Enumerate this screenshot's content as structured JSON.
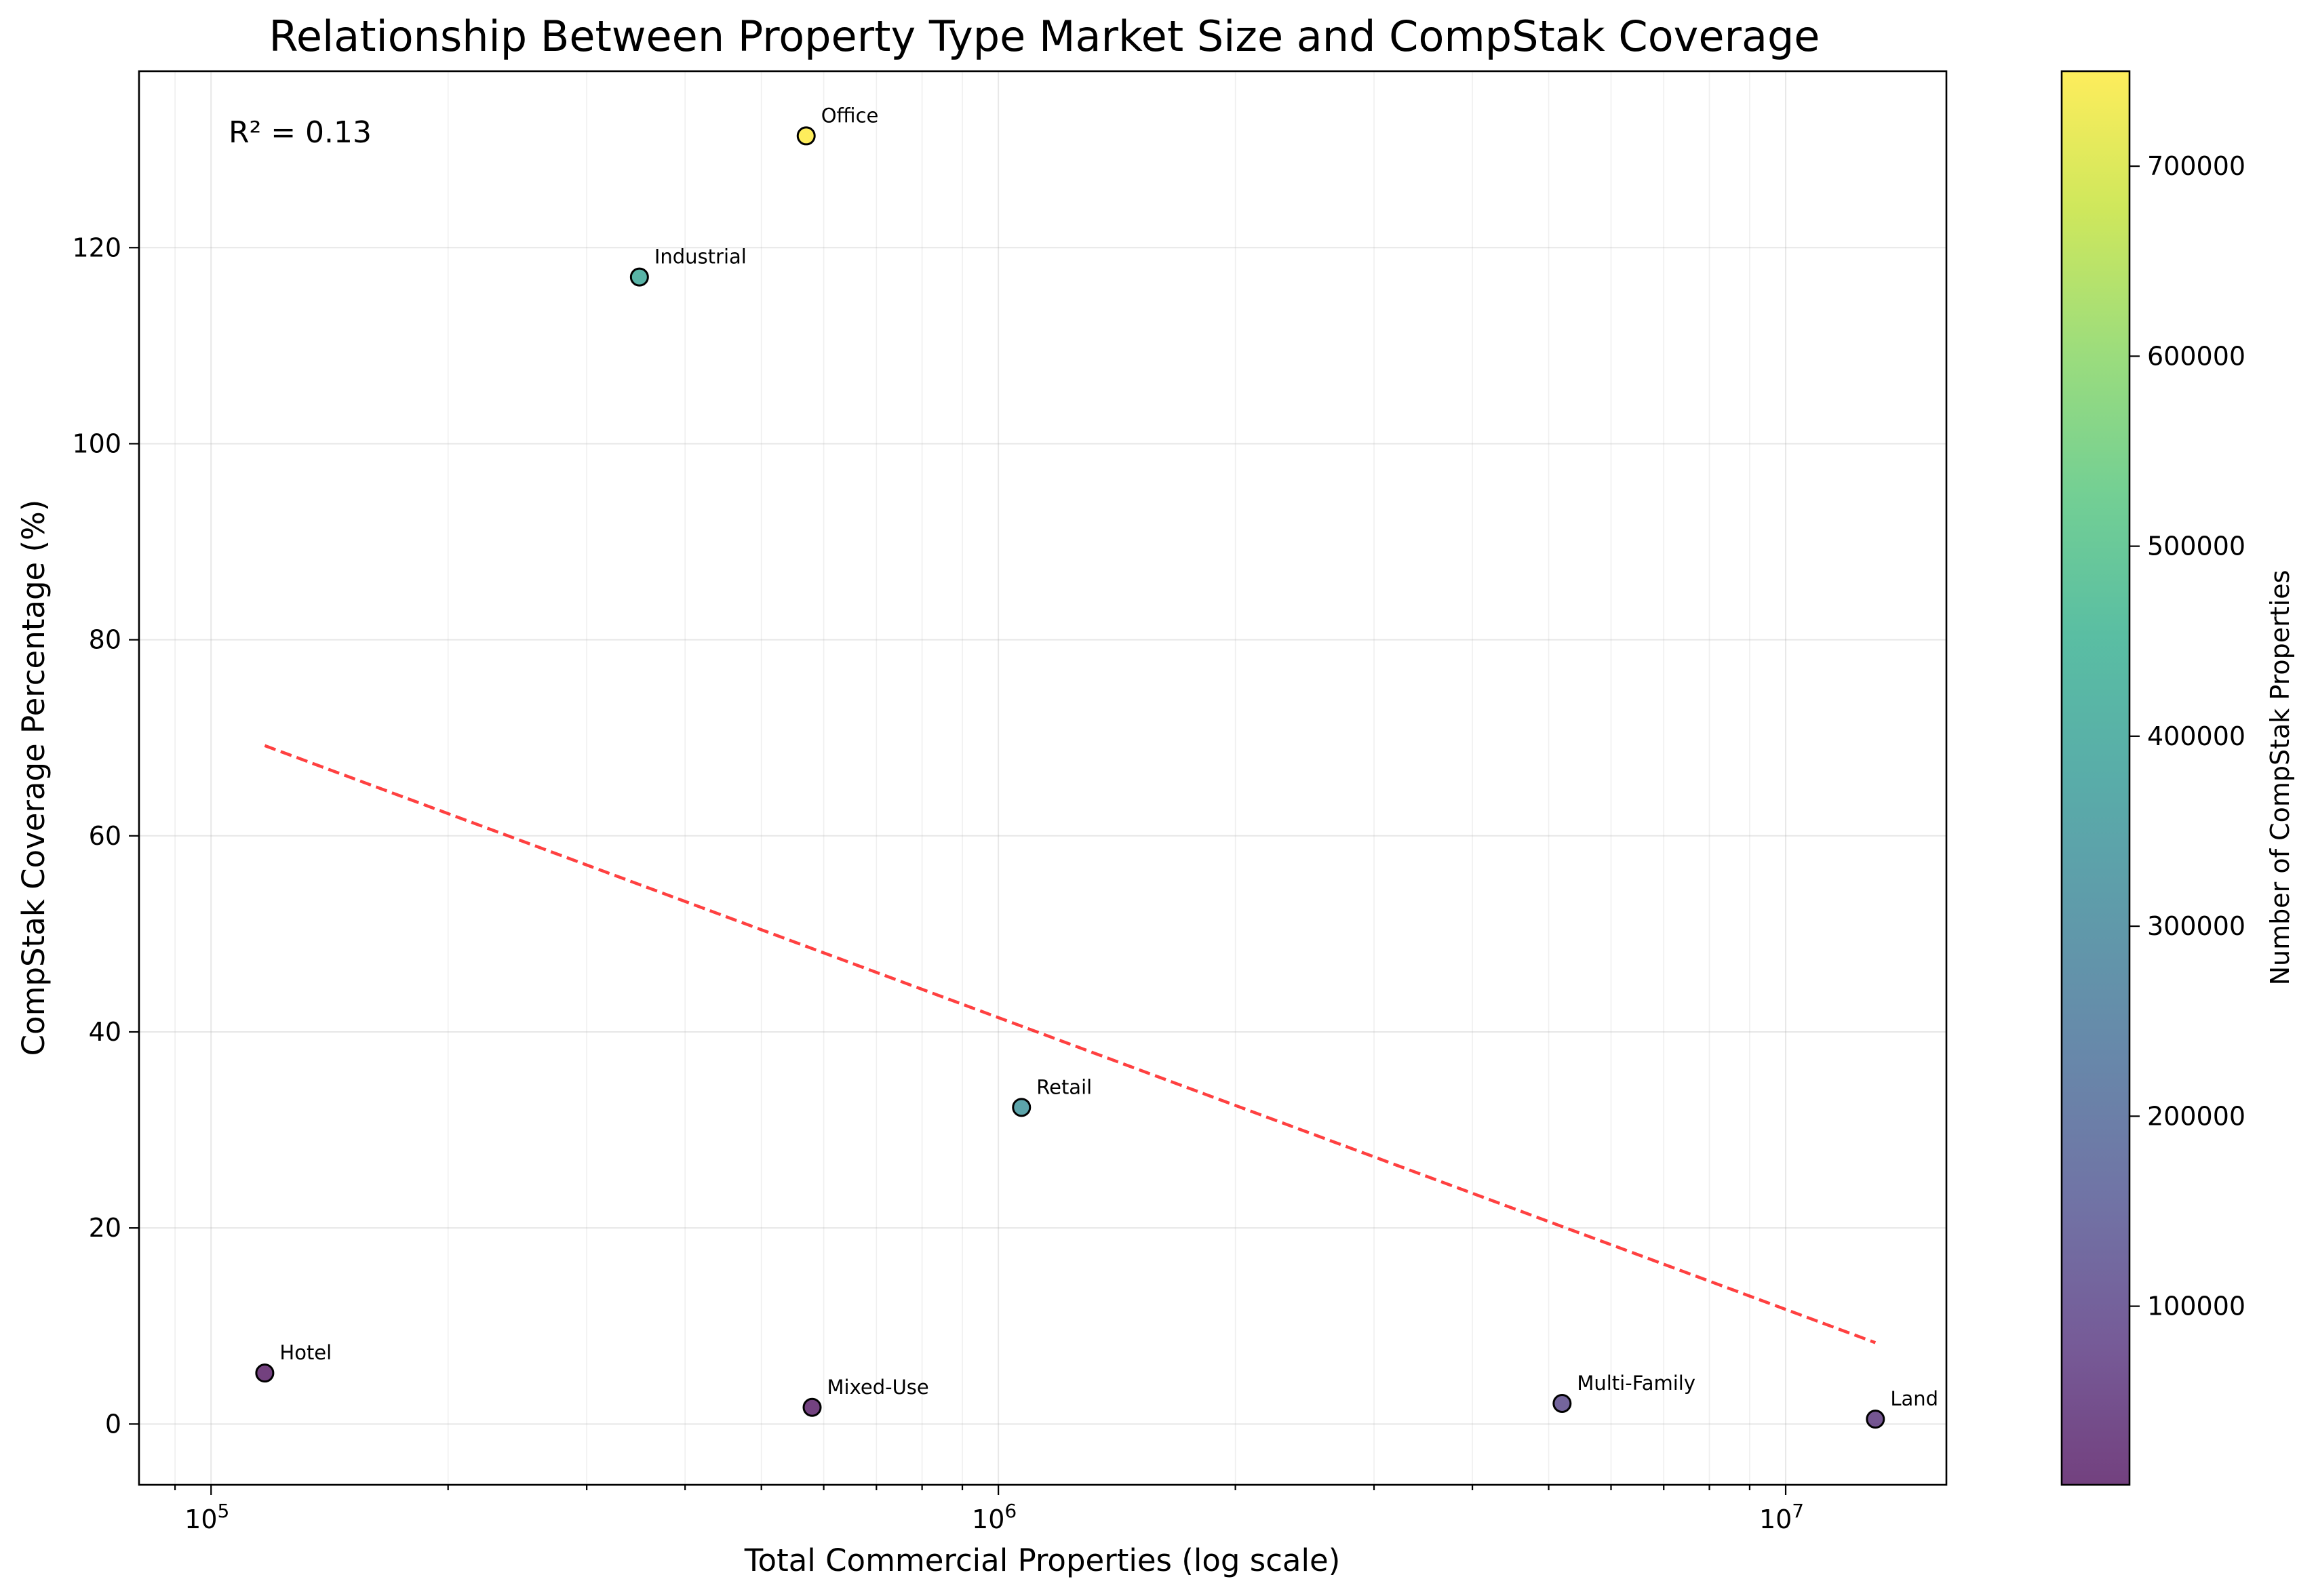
{
  "chart_data": {
    "type": "scatter",
    "title": "Relationship Between Property Type Market Size and CompStak Coverage",
    "xlabel": "Total Commercial Properties (log scale)",
    "ylabel": "CompStak Coverage Percentage (%)",
    "xscale": "log",
    "xlim": [
      81000,
      16000000
    ],
    "ylim": [
      -6.2,
      138
    ],
    "x_ticks": [
      {
        "value": 100000,
        "base": "10",
        "exp": "5"
      },
      {
        "value": 1000000,
        "base": "10",
        "exp": "6"
      },
      {
        "value": 10000000,
        "base": "10",
        "exp": "7"
      }
    ],
    "y_ticks": [
      0,
      20,
      40,
      60,
      80,
      100,
      120
    ],
    "grid": true,
    "annotation": "R² = 0.13",
    "points": [
      {
        "label": "Office",
        "x": 570000,
        "y": 131.4,
        "count": 750000
      },
      {
        "label": "Industrial",
        "x": 350000,
        "y": 117.0,
        "count": 410000
      },
      {
        "label": "Retail",
        "x": 1070000,
        "y": 32.3,
        "count": 345000
      },
      {
        "label": "Hotel",
        "x": 117000,
        "y": 5.2,
        "count": 6000
      },
      {
        "label": "Mixed-Use",
        "x": 580000,
        "y": 1.7,
        "count": 10000
      },
      {
        "label": "Multi-Family",
        "x": 5200000,
        "y": 2.1,
        "count": 110000
      },
      {
        "label": "Land",
        "x": 13000000,
        "y": 0.5,
        "count": 65000
      }
    ],
    "trendline": {
      "x": [
        117000,
        13000000
      ],
      "y": [
        69.2,
        8.3
      ],
      "color": "#ff0000",
      "style": "dashed"
    },
    "colorbar": {
      "label": "Number of CompStak Properties",
      "colormap": "viridis",
      "range": [
        6000,
        750000
      ],
      "ticks": [
        100000,
        200000,
        300000,
        400000,
        500000,
        600000,
        700000
      ]
    }
  }
}
